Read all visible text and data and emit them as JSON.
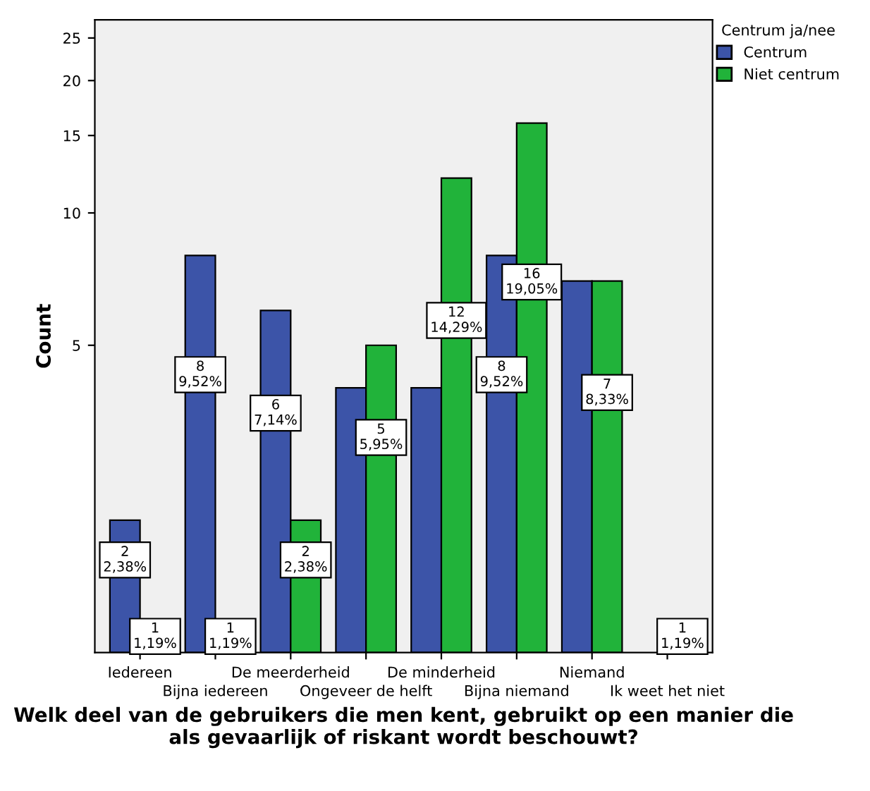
{
  "chart_data": {
    "type": "bar",
    "xlabel": "Welk deel van de gebruikers die men kent, gebruikt op een manier die als gevaarlijk of riskant wordt beschouwt?",
    "ylabel": "Count",
    "legend_title": "Centrum ja/nee",
    "legend": "top right",
    "log": true,
    "grid": false,
    "categories": [
      "Iedereen",
      "Bijna iedereen",
      "De meerderheid",
      "Ongeveer de helft",
      "De minderheid",
      "Bijna niemand",
      "Niemand",
      "Ik weet het niet"
    ],
    "ylim": [
      1,
      27.5
    ],
    "yticks": [
      5,
      10,
      15,
      20,
      25
    ],
    "series": [
      {
        "name": "Centrum",
        "color": "#3c54a8",
        "values": [
          2,
          8,
          6,
          4,
          4,
          8,
          7,
          null
        ],
        "value_labels": [
          "2\n2,38%",
          "8\n9,52%",
          "6\n7,14%",
          null,
          null,
          "8\n9,52%",
          null,
          null
        ]
      },
      {
        "name": "Niet centrum",
        "color": "#21b33a",
        "values": [
          1,
          1,
          2,
          5,
          12,
          16,
          7,
          1
        ],
        "value_labels": [
          "1\n1,19%",
          "1\n1,19%",
          "2\n2,38%",
          "5\n5,95%",
          "12\n14,29%",
          "16\n19,05%",
          "7\n8,33%",
          "1\n1,19%"
        ]
      }
    ]
  }
}
